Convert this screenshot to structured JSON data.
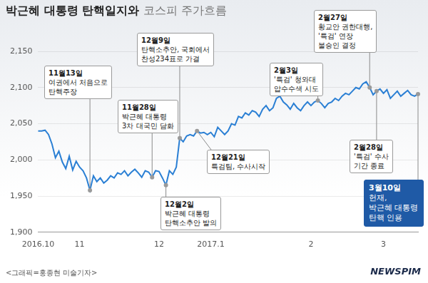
{
  "chart_data": {
    "type": "line",
    "title": "박근혜 대통령 탄핵일지와",
    "subtitle": "코스피 주가흐름",
    "categories": [
      "2016.10",
      null,
      null,
      null,
      null,
      null,
      null,
      null,
      null,
      null,
      null,
      null,
      "11",
      null,
      null,
      null,
      null,
      null,
      null,
      null,
      null,
      null,
      null,
      null,
      null,
      null,
      null,
      null,
      null,
      null,
      null,
      null,
      null,
      null,
      null,
      "12",
      null,
      null,
      null,
      null,
      null,
      null,
      null,
      null,
      null,
      null,
      null,
      null,
      null,
      null,
      "2017.1",
      null,
      null,
      null,
      null,
      null,
      null,
      null,
      null,
      null,
      null,
      null,
      null,
      null,
      null,
      null,
      null,
      null,
      null,
      null,
      null,
      null,
      null,
      null,
      null,
      null,
      null,
      null,
      null,
      "2",
      null,
      null,
      null,
      null,
      null,
      null,
      null,
      null,
      null,
      null,
      null,
      null,
      null,
      null,
      null,
      null,
      null,
      null,
      null,
      null,
      "3",
      null,
      null,
      null,
      null,
      null,
      null,
      null,
      null,
      null,
      null
    ],
    "values": [
      2040,
      2040,
      2041,
      2035,
      2022,
      2003,
      2012,
      1997,
      1988,
      2005,
      1986,
      1998,
      1990,
      1985,
      1975,
      1958,
      1978,
      1970,
      1975,
      1968,
      1972,
      1978,
      1975,
      1982,
      1980,
      1985,
      1978,
      1983,
      1987,
      1982,
      1976,
      1985,
      1983,
      1976,
      1985,
      1984,
      1975,
      1965,
      1985,
      1980,
      1990,
      2030,
      2025,
      2033,
      2035,
      2033,
      2040,
      2037,
      2038,
      2035,
      2038,
      2032,
      2045,
      2040,
      2035,
      2040,
      2050,
      2048,
      2060,
      2058,
      2065,
      2062,
      2068,
      2066,
      2060,
      2070,
      2075,
      2068,
      2072,
      2085,
      2088,
      2080,
      2076,
      2070,
      2078,
      2072,
      2068,
      2075,
      2080,
      2075,
      2080,
      2082,
      2078,
      2072,
      2078,
      2080,
      2085,
      2082,
      2088,
      2092,
      2090,
      2095,
      2100,
      2098,
      2105,
      2108,
      2100,
      2090,
      2095,
      2098,
      2092,
      2097,
      2085,
      2090,
      2095,
      2088,
      2092,
      2096,
      2090,
      2088,
      2091
    ],
    "color": "#2a7fd4",
    "ylim": [
      1900,
      2150
    ],
    "yticks": [
      {
        "value": 1900,
        "label": "1,900"
      },
      {
        "value": 1950,
        "label": "1,950"
      },
      {
        "value": 2000,
        "label": "2,000"
      },
      {
        "value": 2050,
        "label": "2,050"
      },
      {
        "value": 2100,
        "label": "2,100"
      },
      {
        "value": 2150,
        "label": "2,150"
      }
    ],
    "grid": true,
    "annotations": [
      {
        "date": "11월13일",
        "text": [
          "여권에서 처음으로",
          "탄핵주장"
        ]
      },
      {
        "date": "12월9일",
        "text": [
          "탄핵소추안, 국회에서",
          "찬성234표로 가결"
        ]
      },
      {
        "date": "11월28일",
        "text": [
          "박근혜 대통령",
          "3차 대국민 담화"
        ]
      },
      {
        "date": "12월2일",
        "text": [
          "박근혜 대통령",
          "탄핵소추안 발의"
        ]
      },
      {
        "date": "12월21일",
        "text": [
          "특검팀, 수사시작"
        ]
      },
      {
        "date": "2월3일",
        "text": [
          "'특검' 청와대",
          "압수수색 시도"
        ]
      },
      {
        "date": "2월27일",
        "text": [
          "황교안 권한대행,",
          "'특검' 연장",
          "불승인 결정"
        ]
      },
      {
        "date": "2월28일",
        "text": [
          "'특검' 수사",
          "기간 종료"
        ]
      },
      {
        "date": "3월10일",
        "text": [
          "헌재,",
          "박근혜 대통령",
          "탄핵 인용"
        ],
        "color": "#1f5aa6"
      }
    ],
    "credit": "<그래픽=홍종현 미술기자>",
    "source": "NEWSPIM"
  }
}
